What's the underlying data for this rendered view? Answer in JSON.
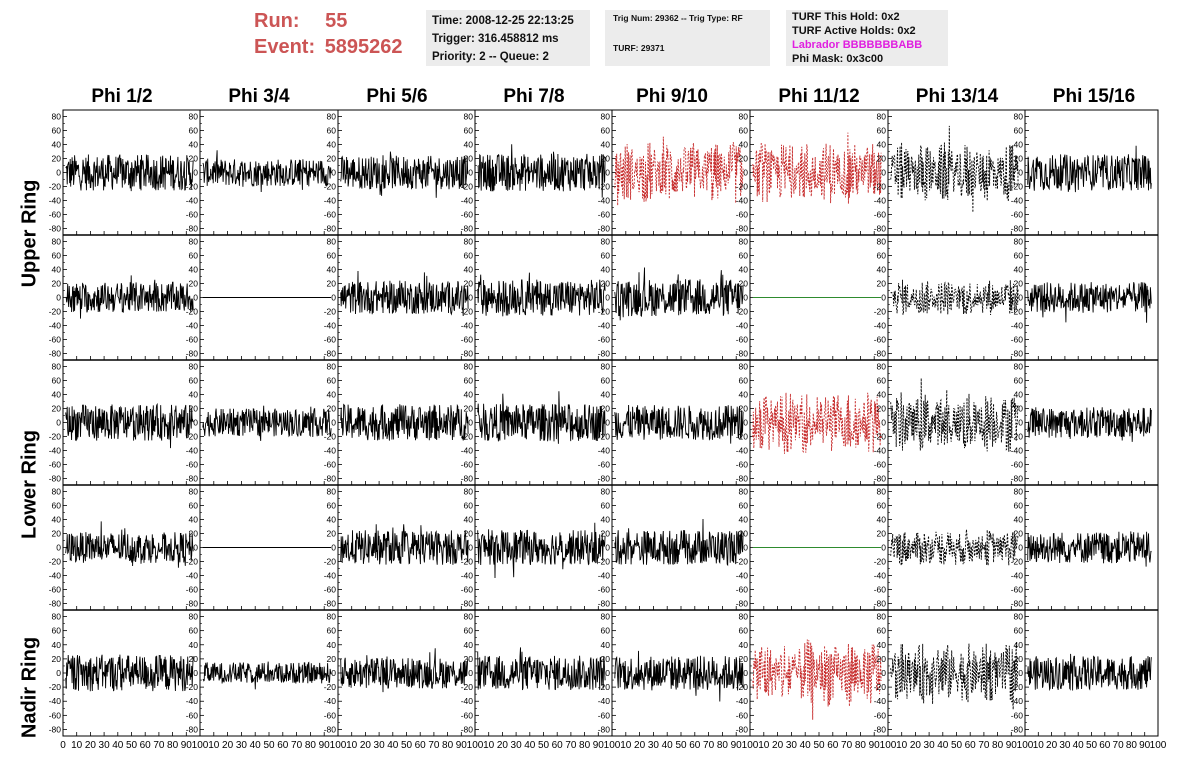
{
  "header": {
    "run_label": "Run:",
    "run_value": "55",
    "event_label": "Event:",
    "event_value": "5895262"
  },
  "info_panel": {
    "time": "Time: 2008-12-25 22:13:25",
    "trigger": "Trigger: 316.458812 ms",
    "priority": "Priority: 2 -- Queue: 2"
  },
  "trig_panel": {
    "trig": "Trig Num: 29362 -- Trig Type: RF",
    "turf": "TURF: 29371"
  },
  "turf_panel": {
    "this_hold": "TURF This Hold: 0x2",
    "active_holds": "TURF Active Holds: 0x2",
    "labrador": "Labrador BBBBBBBABB",
    "phi_mask": "Phi Mask: 0x3c00"
  },
  "columns": [
    "Phi 1/2",
    "Phi 3/4",
    "Phi 5/6",
    "Phi 7/8",
    "Phi 9/10",
    "Phi 11/12",
    "Phi 13/14",
    "Phi 15/16"
  ],
  "rings": [
    "Upper Ring",
    "Lower Ring",
    "Nadir Ring"
  ],
  "colors": {
    "trace": "#000000",
    "masked_trace": "#c62828",
    "flat_masked": "#2e8b2e",
    "header_red": "#cc5555",
    "labrador": "#e020e0",
    "panel_bg": "#ececec"
  },
  "chart_data": {
    "type": "line",
    "grid": "8 columns x 5 rows of waveform panels",
    "xlim": [
      0,
      100
    ],
    "ylim": [
      -85,
      85
    ],
    "yticks": [
      "80",
      "60",
      "40",
      "20",
      "0",
      "-20",
      "-40",
      "-60",
      "-80"
    ],
    "xticks": [
      "0",
      "10",
      "20",
      "30",
      "40",
      "50",
      "60",
      "70",
      "80",
      "90",
      "100"
    ],
    "row_groups": [
      {
        "ring": "Upper Ring",
        "rows": [
          0,
          1
        ]
      },
      {
        "ring": "Lower Ring",
        "rows": [
          2,
          3
        ]
      },
      {
        "ring": "Nadir Ring",
        "rows": [
          4
        ]
      }
    ],
    "panels": [
      [
        {
          "style": "solid",
          "amp": 26
        },
        {
          "style": "solid",
          "amp": 20
        },
        {
          "style": "solid",
          "amp": 24
        },
        {
          "style": "solid",
          "amp": 27
        },
        {
          "style": "dashed-red",
          "amp": 38
        },
        {
          "style": "dashed-red",
          "amp": 38
        },
        {
          "style": "dashed-black",
          "amp": 36
        },
        {
          "style": "solid",
          "amp": 26
        }
      ],
      [
        {
          "style": "solid",
          "amp": 22
        },
        {
          "style": "flat",
          "amp": 0
        },
        {
          "style": "solid",
          "amp": 24
        },
        {
          "style": "solid",
          "amp": 26
        },
        {
          "style": "solid",
          "amp": 27
        },
        {
          "style": "flat-green",
          "amp": 0
        },
        {
          "style": "dashed-black",
          "amp": 22
        },
        {
          "style": "solid",
          "amp": 22
        }
      ],
      [
        {
          "style": "solid",
          "amp": 26
        },
        {
          "style": "solid",
          "amp": 20
        },
        {
          "style": "solid",
          "amp": 26
        },
        {
          "style": "solid",
          "amp": 27
        },
        {
          "style": "solid",
          "amp": 25
        },
        {
          "style": "dashed-red",
          "amp": 38
        },
        {
          "style": "dashed-black",
          "amp": 36
        },
        {
          "style": "solid",
          "amp": 22
        }
      ],
      [
        {
          "style": "solid",
          "amp": 22
        },
        {
          "style": "flat",
          "amp": 0
        },
        {
          "style": "solid",
          "amp": 25
        },
        {
          "style": "solid",
          "amp": 25
        },
        {
          "style": "solid",
          "amp": 25
        },
        {
          "style": "flat-green",
          "amp": 0
        },
        {
          "style": "dashed-black",
          "amp": 22
        },
        {
          "style": "solid",
          "amp": 23
        }
      ],
      [
        {
          "style": "solid",
          "amp": 26
        },
        {
          "style": "solid",
          "amp": 15
        },
        {
          "style": "solid",
          "amp": 22
        },
        {
          "style": "solid",
          "amp": 25
        },
        {
          "style": "solid",
          "amp": 25
        },
        {
          "style": "dashed-red",
          "amp": 40
        },
        {
          "style": "dashed-black",
          "amp": 36
        },
        {
          "style": "solid",
          "amp": 24
        }
      ]
    ]
  }
}
